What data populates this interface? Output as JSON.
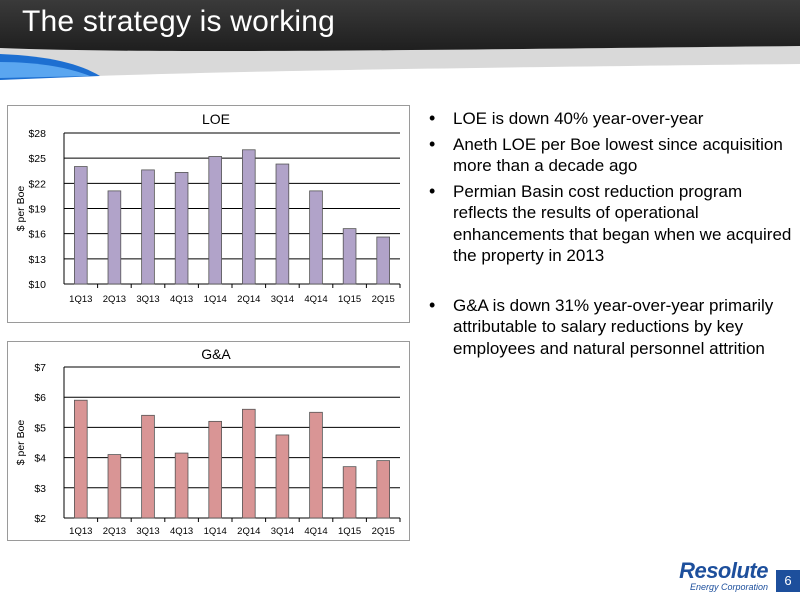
{
  "header": {
    "title": "The strategy is working"
  },
  "bullets": [
    "LOE is down 40% year-over-year",
    "Aneth LOE per Boe lowest since acquisition more than a decade ago",
    "Permian Basin cost reduction program reflects the results of operational enhancements that began when we acquired the property in 2013",
    "G&A is down 31% year-over-year primarily attributable to salary reductions by key employees and natural personnel attrition"
  ],
  "logo": {
    "brand": "Resolute",
    "subtitle": "Energy Corporation"
  },
  "page_number": "6",
  "colors": {
    "loe_bar": "#b1a3c9",
    "ga_bar": "#d99595",
    "brand_blue": "#1d4f9c"
  },
  "chart_data": [
    {
      "type": "bar",
      "title": "LOE",
      "ylabel": "$ per Boe",
      "categories": [
        "1Q13",
        "2Q13",
        "3Q13",
        "4Q13",
        "1Q14",
        "2Q14",
        "3Q14",
        "4Q14",
        "1Q15",
        "2Q15"
      ],
      "values": [
        24.0,
        21.1,
        23.6,
        23.3,
        25.2,
        26.0,
        24.3,
        21.1,
        16.6,
        15.6
      ],
      "ylim": [
        10,
        28
      ],
      "yticks": [
        10,
        13,
        16,
        19,
        22,
        25,
        28
      ],
      "ytick_labels": [
        "$10",
        "$13",
        "$16",
        "$19",
        "$22",
        "$25",
        "$28"
      ],
      "grid": true
    },
    {
      "type": "bar",
      "title": "G&A",
      "ylabel": "$ per Boe",
      "categories": [
        "1Q13",
        "2Q13",
        "3Q13",
        "4Q13",
        "1Q14",
        "2Q14",
        "3Q14",
        "4Q14",
        "1Q15",
        "2Q15"
      ],
      "values": [
        5.9,
        4.1,
        5.4,
        4.15,
        5.2,
        5.6,
        4.75,
        5.5,
        3.7,
        3.9
      ],
      "ylim": [
        2,
        7
      ],
      "yticks": [
        2,
        3,
        4,
        5,
        6,
        7
      ],
      "ytick_labels": [
        "$2",
        "$3",
        "$4",
        "$5",
        "$6",
        "$7"
      ],
      "grid": true
    }
  ]
}
